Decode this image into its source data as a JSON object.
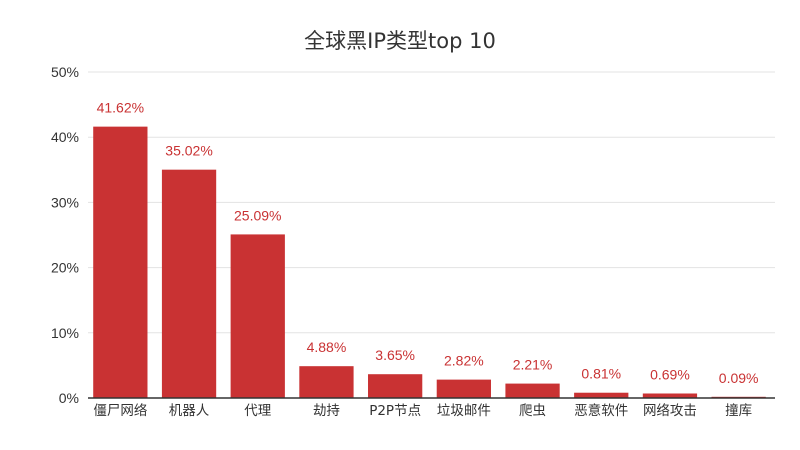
{
  "chart_data": {
    "type": "bar",
    "title": "全球黑IP类型top 10",
    "xlabel": "",
    "ylabel": "",
    "categories": [
      "僵尸网络",
      "机器人",
      "代理",
      "劫持",
      "P2P节点",
      "垃圾邮件",
      "爬虫",
      "恶意软件",
      "网络攻击",
      "撞库"
    ],
    "values": [
      41.62,
      35.02,
      25.09,
      4.88,
      3.65,
      2.82,
      2.21,
      0.81,
      0.69,
      0.09
    ],
    "data_labels": [
      "41.62%",
      "35.02%",
      "25.09%",
      "4.88%",
      "3.65%",
      "2.82%",
      "2.21%",
      "0.81%",
      "0.69%",
      "0.09%"
    ],
    "ylim": [
      0,
      50
    ],
    "yticks": [
      0,
      10,
      20,
      30,
      40,
      50
    ],
    "ytick_labels": [
      "0%",
      "10%",
      "20%",
      "30%",
      "40%",
      "50%"
    ],
    "grid": true,
    "legend": "none",
    "bar_color": "#c93233",
    "label_color": "#c93233"
  }
}
